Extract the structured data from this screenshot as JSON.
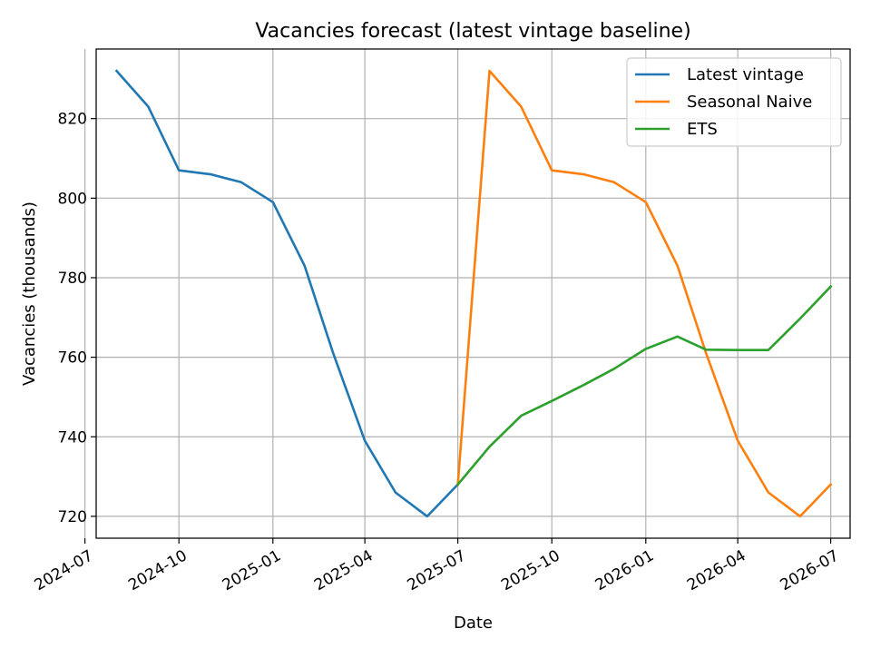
{
  "chart_data": {
    "type": "line",
    "title": "Vacancies forecast (latest vintage baseline)",
    "xlabel": "Date",
    "ylabel": "Vacancies (thousands)",
    "x_axis_type": "date",
    "xlim": [
      "2024-07-12",
      "2026-07-20"
    ],
    "ylim": [
      714.5,
      837.5
    ],
    "x_ticks": [
      "2024-07",
      "2024-10",
      "2025-01",
      "2025-04",
      "2025-07",
      "2025-10",
      "2026-01",
      "2026-04",
      "2026-07"
    ],
    "y_ticks": [
      720,
      740,
      760,
      780,
      800,
      820
    ],
    "grid": true,
    "legend_position": "top-right",
    "series": [
      {
        "name": "Latest vintage",
        "color": "#1f77b4",
        "x": [
          "2024-08-01",
          "2024-09-01",
          "2024-10-01",
          "2024-11-01",
          "2024-12-01",
          "2025-01-01",
          "2025-02-01",
          "2025-03-01",
          "2025-04-01",
          "2025-05-01",
          "2025-06-01",
          "2025-07-01"
        ],
        "y": [
          832,
          823,
          807,
          806,
          804,
          799,
          783,
          761,
          739,
          726,
          720,
          728
        ]
      },
      {
        "name": "Seasonal Naive",
        "color": "#ff7f0e",
        "x": [
          "2025-07-01",
          "2025-08-01",
          "2025-09-01",
          "2025-10-01",
          "2025-11-01",
          "2025-12-01",
          "2026-01-01",
          "2026-02-01",
          "2026-03-01",
          "2026-04-01",
          "2026-05-01",
          "2026-06-01",
          "2026-07-01"
        ],
        "y": [
          728,
          832,
          823,
          807,
          806,
          804,
          799,
          783,
          761,
          739,
          726,
          720,
          728
        ]
      },
      {
        "name": "ETS",
        "color": "#2ca02c",
        "x": [
          "2025-07-01",
          "2025-08-01",
          "2025-09-01",
          "2025-10-01",
          "2025-11-01",
          "2025-12-01",
          "2026-01-01",
          "2026-02-01",
          "2026-03-01",
          "2026-04-01",
          "2026-05-01",
          "2026-06-01",
          "2026-07-01"
        ],
        "y": [
          728,
          737.5,
          745.3,
          749,
          753,
          757.1,
          762.1,
          765.2,
          761.9,
          761.8,
          761.8,
          769.7,
          777.8
        ]
      }
    ]
  }
}
